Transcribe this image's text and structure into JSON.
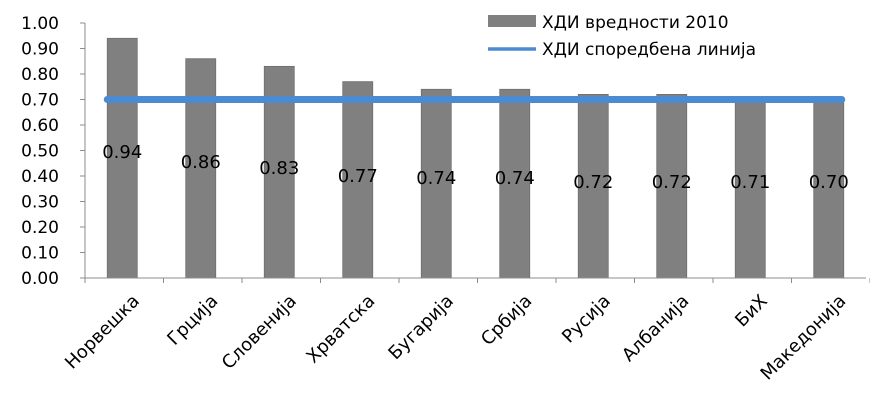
{
  "chart_data": {
    "type": "bar",
    "title": "",
    "xlabel": "",
    "ylabel": "",
    "ylim": [
      0,
      1.0
    ],
    "y_ticks": [
      "0.00",
      "0.10",
      "0.20",
      "0.30",
      "0.40",
      "0.50",
      "0.60",
      "0.70",
      "0.80",
      "0.90",
      "1.00"
    ],
    "categories": [
      "Норвешка",
      "Грција",
      "Словенија",
      "Хрватска",
      "Бугарија",
      "Србија",
      "Русија",
      "Албанија",
      "БиХ",
      "Македонија"
    ],
    "series": [
      {
        "name": "ХДИ вредности 2010",
        "kind": "bar",
        "color": "#808080",
        "values": [
          0.94,
          0.86,
          0.83,
          0.77,
          0.74,
          0.74,
          0.72,
          0.72,
          0.71,
          0.7
        ],
        "data_labels": [
          "0.94",
          "0.86",
          "0.83",
          "0.77",
          "0.74",
          "0.74",
          "0.72",
          "0.72",
          "0.71",
          "0.70"
        ]
      },
      {
        "name": "ХДИ споредбена линија",
        "kind": "line",
        "color": "#4A8BD4",
        "values": [
          0.7,
          0.7,
          0.7,
          0.7,
          0.7,
          0.7,
          0.7,
          0.7,
          0.7,
          0.7
        ]
      }
    ],
    "grid": false,
    "legend_position": "top-right"
  }
}
